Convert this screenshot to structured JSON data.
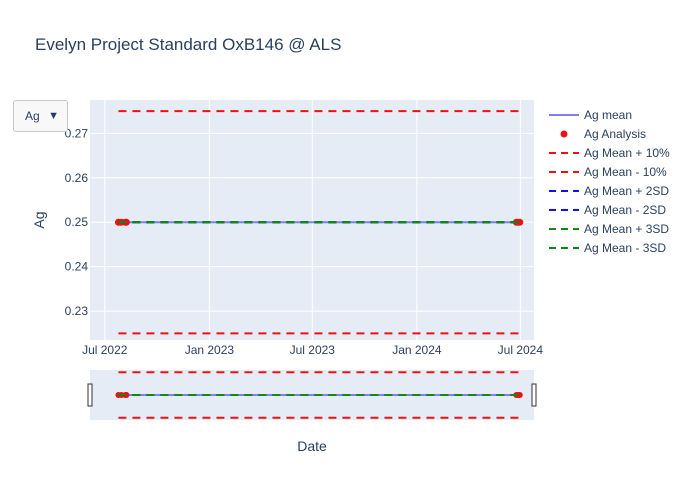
{
  "chart_data": {
    "type": "line",
    "title": "Evelyn Project Standard OxB146 @ ALS",
    "xlabel": "Date",
    "ylabel": "Ag",
    "x_range": [
      "2022-06-05",
      "2024-07-25"
    ],
    "ylim": [
      0.2235,
      0.2775
    ],
    "x_ticks": [
      {
        "date": "2022-07-01",
        "label": "Jul 2022"
      },
      {
        "date": "2023-01-01",
        "label": "Jan 2023"
      },
      {
        "date": "2023-07-01",
        "label": "Jul 2023"
      },
      {
        "date": "2024-01-01",
        "label": "Jan 2024"
      },
      {
        "date": "2024-07-01",
        "label": "Jul 2024"
      }
    ],
    "y_ticks": [
      0.23,
      0.24,
      0.25,
      0.26,
      0.27
    ],
    "grid": true,
    "legend_position": "right",
    "series": [
      {
        "name": "Ag mean",
        "mode": "line",
        "color": "#7f7ff0",
        "dash": "solid",
        "x": [
          "2022-07-25",
          "2024-06-30"
        ],
        "y": [
          0.25,
          0.25
        ]
      },
      {
        "name": "Ag Analysis",
        "mode": "markers",
        "color": "#ee1111",
        "x": [
          "2022-07-25",
          "2022-07-30",
          "2022-08-06",
          "2022-08-08",
          "2024-06-24",
          "2024-06-27",
          "2024-06-30"
        ],
        "y": [
          0.25,
          0.25,
          0.25,
          0.25,
          0.25,
          0.25,
          0.25
        ]
      },
      {
        "name": "Ag Mean + 10%",
        "mode": "line",
        "color": "#ee1111",
        "dash": "dash",
        "x": [
          "2022-07-25",
          "2024-06-30"
        ],
        "y": [
          0.275,
          0.275
        ]
      },
      {
        "name": "Ag Mean - 10%",
        "mode": "line",
        "color": "#ee1111",
        "dash": "dash",
        "x": [
          "2022-07-25",
          "2024-06-30"
        ],
        "y": [
          0.225,
          0.225
        ]
      },
      {
        "name": "Ag Mean + 2SD",
        "mode": "line",
        "color": "#1111ee",
        "dash": "dash",
        "x": [
          "2022-07-25",
          "2024-06-30"
        ],
        "y": [
          0.25,
          0.25
        ]
      },
      {
        "name": "Ag Mean - 2SD",
        "mode": "line",
        "color": "#1111ee",
        "dash": "dash",
        "x": [
          "2022-07-25",
          "2024-06-30"
        ],
        "y": [
          0.25,
          0.25
        ]
      },
      {
        "name": "Ag Mean + 3SD",
        "mode": "line",
        "color": "#118811",
        "dash": "dash",
        "x": [
          "2022-07-25",
          "2024-06-30"
        ],
        "y": [
          0.25,
          0.25
        ]
      },
      {
        "name": "Ag Mean - 3SD",
        "mode": "line",
        "color": "#118811",
        "dash": "dash",
        "x": [
          "2022-07-25",
          "2024-06-30"
        ],
        "y": [
          0.25,
          0.25
        ]
      }
    ]
  },
  "dropdown": {
    "selected": "Ag",
    "icon": "triangle-down-icon"
  },
  "colors": {
    "plot_bg": "#e5ecf6",
    "grid": "#ffffff",
    "text": "#2a3f5f"
  }
}
